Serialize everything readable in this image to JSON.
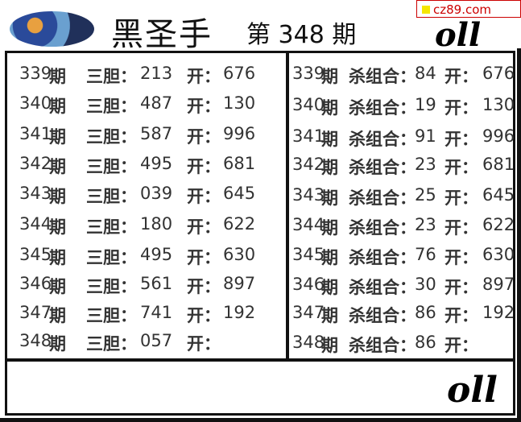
{
  "header": {
    "title": "黑圣手",
    "issue": "第 348 期",
    "watermark": "cz89.com",
    "signature": "oll"
  },
  "labels": {
    "period_suffix": "期",
    "sandan": "三胆：",
    "shazuhe": "杀组合：",
    "kai": "开："
  },
  "left_rows": [
    {
      "period": "339",
      "value": "213",
      "open": "676"
    },
    {
      "period": "340",
      "value": "487",
      "open": "130"
    },
    {
      "period": "341",
      "value": "587",
      "open": "996"
    },
    {
      "period": "342",
      "value": "495",
      "open": "681"
    },
    {
      "period": "343",
      "value": "039",
      "open": "645"
    },
    {
      "period": "344",
      "value": "180",
      "open": "622"
    },
    {
      "period": "345",
      "value": "495",
      "open": "630"
    },
    {
      "period": "346",
      "value": "561",
      "open": "897"
    },
    {
      "period": "347",
      "value": "741",
      "open": "192"
    },
    {
      "period": "348",
      "value": "057",
      "open": ""
    }
  ],
  "right_rows": [
    {
      "period": "339",
      "value": "84",
      "open": "676"
    },
    {
      "period": "340",
      "value": "19",
      "open": "130"
    },
    {
      "period": "341",
      "value": "91",
      "open": "996"
    },
    {
      "period": "342",
      "value": "23",
      "open": "681"
    },
    {
      "period": "343",
      "value": "25",
      "open": "645"
    },
    {
      "period": "344",
      "value": "23",
      "open": "622"
    },
    {
      "period": "345",
      "value": "76",
      "open": "630"
    },
    {
      "period": "346",
      "value": "30",
      "open": "897"
    },
    {
      "period": "347",
      "value": "86",
      "open": "192"
    },
    {
      "period": "348",
      "value": "86",
      "open": ""
    }
  ]
}
